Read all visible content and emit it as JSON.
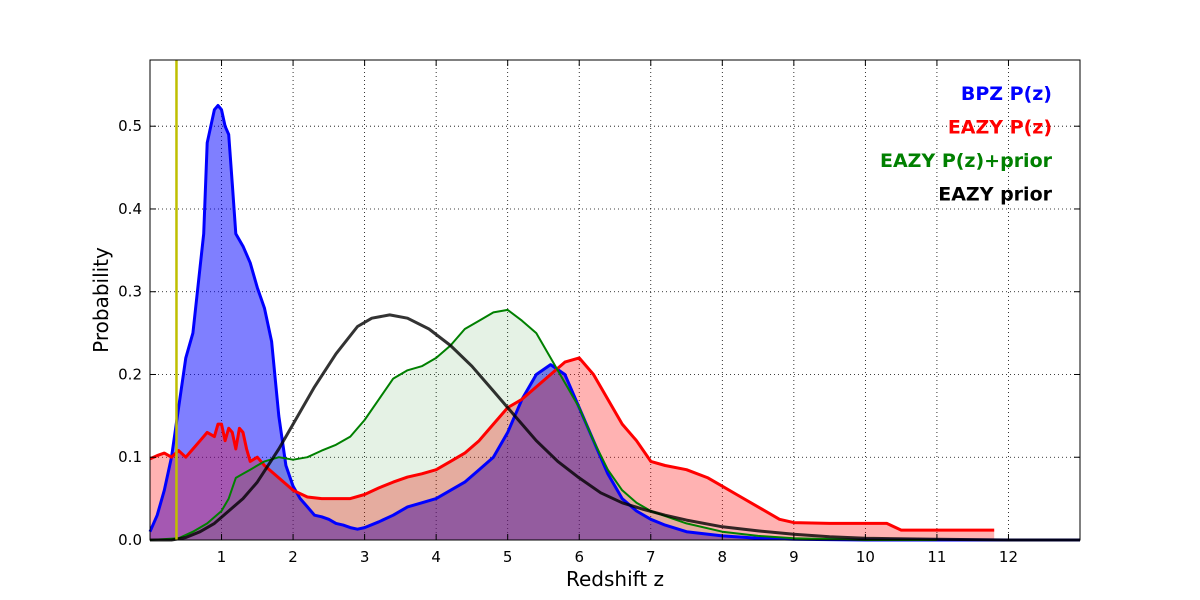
{
  "chart_data": {
    "type": "area",
    "title": "",
    "xlabel": "Redshift z",
    "ylabel": "Probability",
    "xlim": [
      0,
      13
    ],
    "ylim": [
      0,
      0.58
    ],
    "x_ticks": [
      1,
      2,
      3,
      4,
      5,
      6,
      7,
      8,
      9,
      10,
      11,
      12
    ],
    "x_tick_labels": [
      "1",
      "2",
      "3",
      "4",
      "5",
      "6",
      "7",
      "8",
      "9",
      "10",
      "11",
      "12"
    ],
    "y_ticks": [
      0.0,
      0.1,
      0.2,
      0.3,
      0.4,
      0.5
    ],
    "y_tick_labels": [
      "0.0",
      "0.1",
      "0.2",
      "0.3",
      "0.4",
      "0.5"
    ],
    "grid": true,
    "legend_position": "top-right",
    "vline": {
      "x": 0.37,
      "color": "#bfbf00"
    },
    "series": [
      {
        "name": "BPZ P(z)",
        "color": "#0000ff",
        "fill": "#0000ff",
        "fill_opacity": 0.5,
        "x": [
          0,
          0.1,
          0.2,
          0.3,
          0.4,
          0.5,
          0.6,
          0.7,
          0.75,
          0.8,
          0.85,
          0.9,
          0.95,
          1.0,
          1.05,
          1.1,
          1.15,
          1.2,
          1.3,
          1.4,
          1.5,
          1.6,
          1.7,
          1.8,
          1.9,
          2.0,
          2.1,
          2.2,
          2.3,
          2.4,
          2.5,
          2.6,
          2.7,
          2.8,
          2.9,
          3.0,
          3.2,
          3.4,
          3.6,
          3.8,
          4.0,
          4.2,
          4.4,
          4.6,
          4.8,
          5.0,
          5.2,
          5.4,
          5.6,
          5.8,
          6.0,
          6.2,
          6.4,
          6.6,
          6.8,
          7.0,
          7.2,
          7.5,
          8.0,
          8.5,
          9.0,
          10.0,
          11.0,
          12.0,
          13.0
        ],
        "y": [
          0.01,
          0.03,
          0.06,
          0.1,
          0.16,
          0.22,
          0.25,
          0.33,
          0.37,
          0.48,
          0.5,
          0.52,
          0.525,
          0.52,
          0.5,
          0.49,
          0.43,
          0.37,
          0.355,
          0.335,
          0.305,
          0.28,
          0.24,
          0.15,
          0.09,
          0.065,
          0.05,
          0.04,
          0.03,
          0.028,
          0.025,
          0.02,
          0.018,
          0.015,
          0.013,
          0.015,
          0.022,
          0.03,
          0.04,
          0.045,
          0.05,
          0.06,
          0.07,
          0.085,
          0.1,
          0.13,
          0.17,
          0.2,
          0.212,
          0.2,
          0.16,
          0.12,
          0.08,
          0.05,
          0.035,
          0.025,
          0.018,
          0.01,
          0.005,
          0.002,
          0.001,
          0.0,
          0.0,
          0.0,
          0.0
        ]
      },
      {
        "name": "EAZY P(z)",
        "color": "#ff0000",
        "fill": "#ff0000",
        "fill_opacity": 0.3,
        "x": [
          0,
          0.1,
          0.2,
          0.3,
          0.4,
          0.5,
          0.6,
          0.7,
          0.8,
          0.9,
          0.95,
          1.0,
          1.05,
          1.1,
          1.15,
          1.2,
          1.25,
          1.3,
          1.35,
          1.4,
          1.5,
          1.6,
          1.8,
          2.0,
          2.2,
          2.4,
          2.6,
          2.8,
          3.0,
          3.2,
          3.4,
          3.6,
          3.8,
          4.0,
          4.2,
          4.4,
          4.6,
          4.8,
          5.0,
          5.2,
          5.4,
          5.6,
          5.8,
          6.0,
          6.2,
          6.4,
          6.6,
          6.8,
          7.0,
          7.2,
          7.5,
          7.8,
          8.0,
          8.2,
          8.5,
          8.8,
          9.0,
          9.5,
          10.0,
          10.3,
          10.5,
          11.0,
          11.5,
          11.8
        ],
        "y": [
          0.098,
          0.102,
          0.105,
          0.1,
          0.108,
          0.1,
          0.11,
          0.12,
          0.13,
          0.125,
          0.14,
          0.14,
          0.12,
          0.135,
          0.13,
          0.11,
          0.135,
          0.13,
          0.11,
          0.095,
          0.1,
          0.09,
          0.075,
          0.06,
          0.052,
          0.05,
          0.05,
          0.05,
          0.055,
          0.063,
          0.07,
          0.076,
          0.08,
          0.085,
          0.095,
          0.105,
          0.12,
          0.14,
          0.16,
          0.17,
          0.185,
          0.2,
          0.215,
          0.22,
          0.2,
          0.17,
          0.14,
          0.12,
          0.095,
          0.09,
          0.085,
          0.075,
          0.065,
          0.055,
          0.04,
          0.025,
          0.021,
          0.02,
          0.02,
          0.02,
          0.012,
          0.012,
          0.012,
          0.012
        ]
      },
      {
        "name": "EAZY P(z)+prior",
        "color": "#008000",
        "fill": "#008000",
        "fill_opacity": 0.1,
        "x": [
          0,
          0.4,
          0.6,
          0.8,
          1.0,
          1.1,
          1.2,
          1.3,
          1.4,
          1.5,
          1.6,
          1.8,
          2.0,
          2.2,
          2.4,
          2.6,
          2.8,
          3.0,
          3.2,
          3.4,
          3.6,
          3.8,
          4.0,
          4.2,
          4.4,
          4.6,
          4.8,
          5.0,
          5.2,
          5.4,
          5.6,
          5.8,
          6.0,
          6.2,
          6.4,
          6.6,
          6.8,
          7.0,
          7.5,
          8.0,
          8.5,
          9.0,
          10.0,
          11.0
        ],
        "y": [
          0,
          0.002,
          0.01,
          0.02,
          0.035,
          0.05,
          0.075,
          0.08,
          0.085,
          0.09,
          0.095,
          0.1,
          0.097,
          0.1,
          0.108,
          0.115,
          0.125,
          0.145,
          0.17,
          0.195,
          0.205,
          0.21,
          0.22,
          0.235,
          0.255,
          0.265,
          0.275,
          0.278,
          0.265,
          0.25,
          0.22,
          0.19,
          0.16,
          0.12,
          0.085,
          0.06,
          0.045,
          0.035,
          0.02,
          0.01,
          0.005,
          0.002,
          0.0,
          0.0
        ]
      },
      {
        "name": "EAZY prior",
        "color": "#000000",
        "fill": "none",
        "fill_opacity": 0,
        "x": [
          0,
          0.3,
          0.5,
          0.7,
          0.9,
          1.1,
          1.3,
          1.5,
          1.8,
          2.0,
          2.3,
          2.6,
          2.9,
          3.1,
          3.35,
          3.6,
          3.9,
          4.2,
          4.5,
          4.8,
          5.1,
          5.4,
          5.7,
          6.0,
          6.3,
          6.6,
          6.9,
          7.2,
          7.5,
          8.0,
          8.5,
          9.0,
          9.5,
          10.0,
          11.0,
          12.0,
          13.0
        ],
        "y": [
          0,
          0.0,
          0.003,
          0.01,
          0.02,
          0.035,
          0.05,
          0.07,
          0.11,
          0.14,
          0.185,
          0.225,
          0.258,
          0.268,
          0.272,
          0.268,
          0.255,
          0.235,
          0.21,
          0.18,
          0.15,
          0.12,
          0.095,
          0.075,
          0.057,
          0.045,
          0.037,
          0.03,
          0.024,
          0.016,
          0.011,
          0.007,
          0.004,
          0.002,
          0.001,
          0.0,
          0.0
        ]
      }
    ]
  }
}
